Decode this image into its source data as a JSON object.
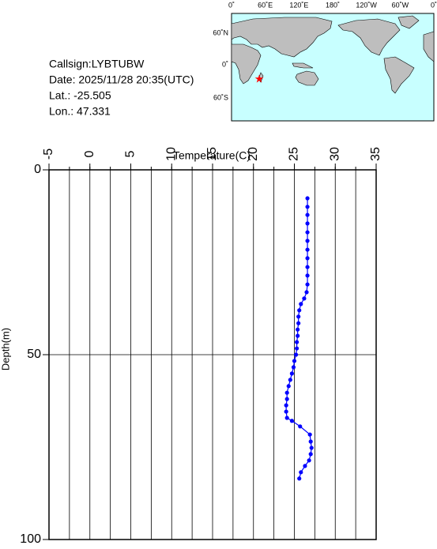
{
  "info": {
    "callsign": "Callsign:LYBTUBW",
    "date": "Date:  2025/11/28 20:35(UTC)",
    "lat": "Lat.:  -25.505",
    "lon": "Lon.:   47.331"
  },
  "map": {
    "top_labels": [
      "0˚",
      "60˚E",
      "120˚E",
      "180˚",
      "120˚W",
      "60˚W",
      "0˚"
    ],
    "left_labels": [
      "60˚N",
      "0˚",
      "60˚S"
    ]
  },
  "chart_data": {
    "type": "line",
    "x_label": "Temperature(C)",
    "y_label": "Depth(m)",
    "color": "#0000ff",
    "y_inverted": true,
    "xlim": [
      -5,
      35
    ],
    "xticks": [
      -5,
      0,
      5,
      10,
      15,
      20,
      25,
      30,
      35
    ],
    "xgrid": [
      -2.5,
      0,
      2.5,
      5,
      7.5,
      10,
      12.5,
      15,
      17.5,
      20,
      22.5,
      25,
      27.5,
      30,
      32.5
    ],
    "ylim": [
      0,
      100
    ],
    "yticks": [
      0,
      50,
      100
    ],
    "ygrid": [
      50
    ],
    "x": [
      26.6,
      26.6,
      26.6,
      26.6,
      26.6,
      26.6,
      26.6,
      26.6,
      26.6,
      26.6,
      26.6,
      26.5,
      26.2,
      25.8,
      25.6,
      25.5,
      25.5,
      25.4,
      25.4,
      25.3,
      25.3,
      25.2,
      25.0,
      24.9,
      24.7,
      24.5,
      24.3,
      24.1,
      24.1,
      24.0,
      24.0,
      24.1,
      24.7,
      25.7,
      26.9,
      27.0,
      27.1,
      27.0,
      26.8,
      26.3,
      25.8,
      25.6
    ],
    "values": [
      7.7,
      10.0,
      12.2,
      14.5,
      16.9,
      19.2,
      21.6,
      23.9,
      26.3,
      28.6,
      31.0,
      33.1,
      34.8,
      36.3,
      38.0,
      39.7,
      41.5,
      43.2,
      44.9,
      46.6,
      48.3,
      50.0,
      51.7,
      53.4,
      55.1,
      56.8,
      58.5,
      60.3,
      62.0,
      63.7,
      65.4,
      67.1,
      67.9,
      69.4,
      71.6,
      73.5,
      75.2,
      76.9,
      78.6,
      80.1,
      81.8,
      83.5
    ]
  }
}
